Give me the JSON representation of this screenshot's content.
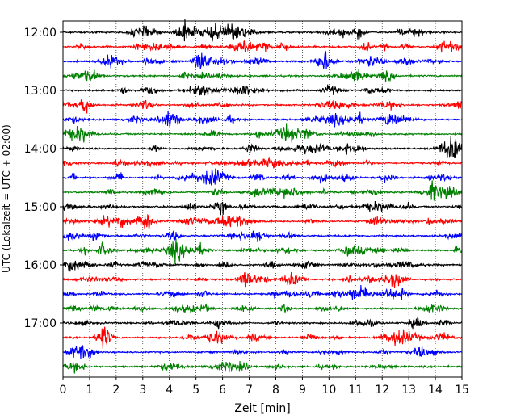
{
  "chart_data": {
    "type": "line",
    "title": "",
    "xlabel": "Zeit  [min]",
    "ylabel": "UTC (Lokalzeit = UTC + 02:00)",
    "xlim": [
      0,
      15
    ],
    "x_ticks": [
      "0",
      "1",
      "2",
      "3",
      "4",
      "5",
      "6",
      "7",
      "8",
      "9",
      "10",
      "11",
      "12",
      "13",
      "14",
      "15"
    ],
    "y_ticks": [
      {
        "label": "12:00",
        "trace": 0
      },
      {
        "label": "13:00",
        "trace": 4
      },
      {
        "label": "14:00",
        "trace": 8
      },
      {
        "label": "15:00",
        "trace": 12
      },
      {
        "label": "16:00",
        "trace": 16
      },
      {
        "label": "17:00",
        "trace": 20
      }
    ],
    "trace_count": 24,
    "trace_interval_min": 15,
    "colors": [
      "#000000",
      "#ff0000",
      "#0000ff",
      "#008000"
    ],
    "grid": {
      "x": true,
      "y": false,
      "style": "dotted"
    }
  }
}
